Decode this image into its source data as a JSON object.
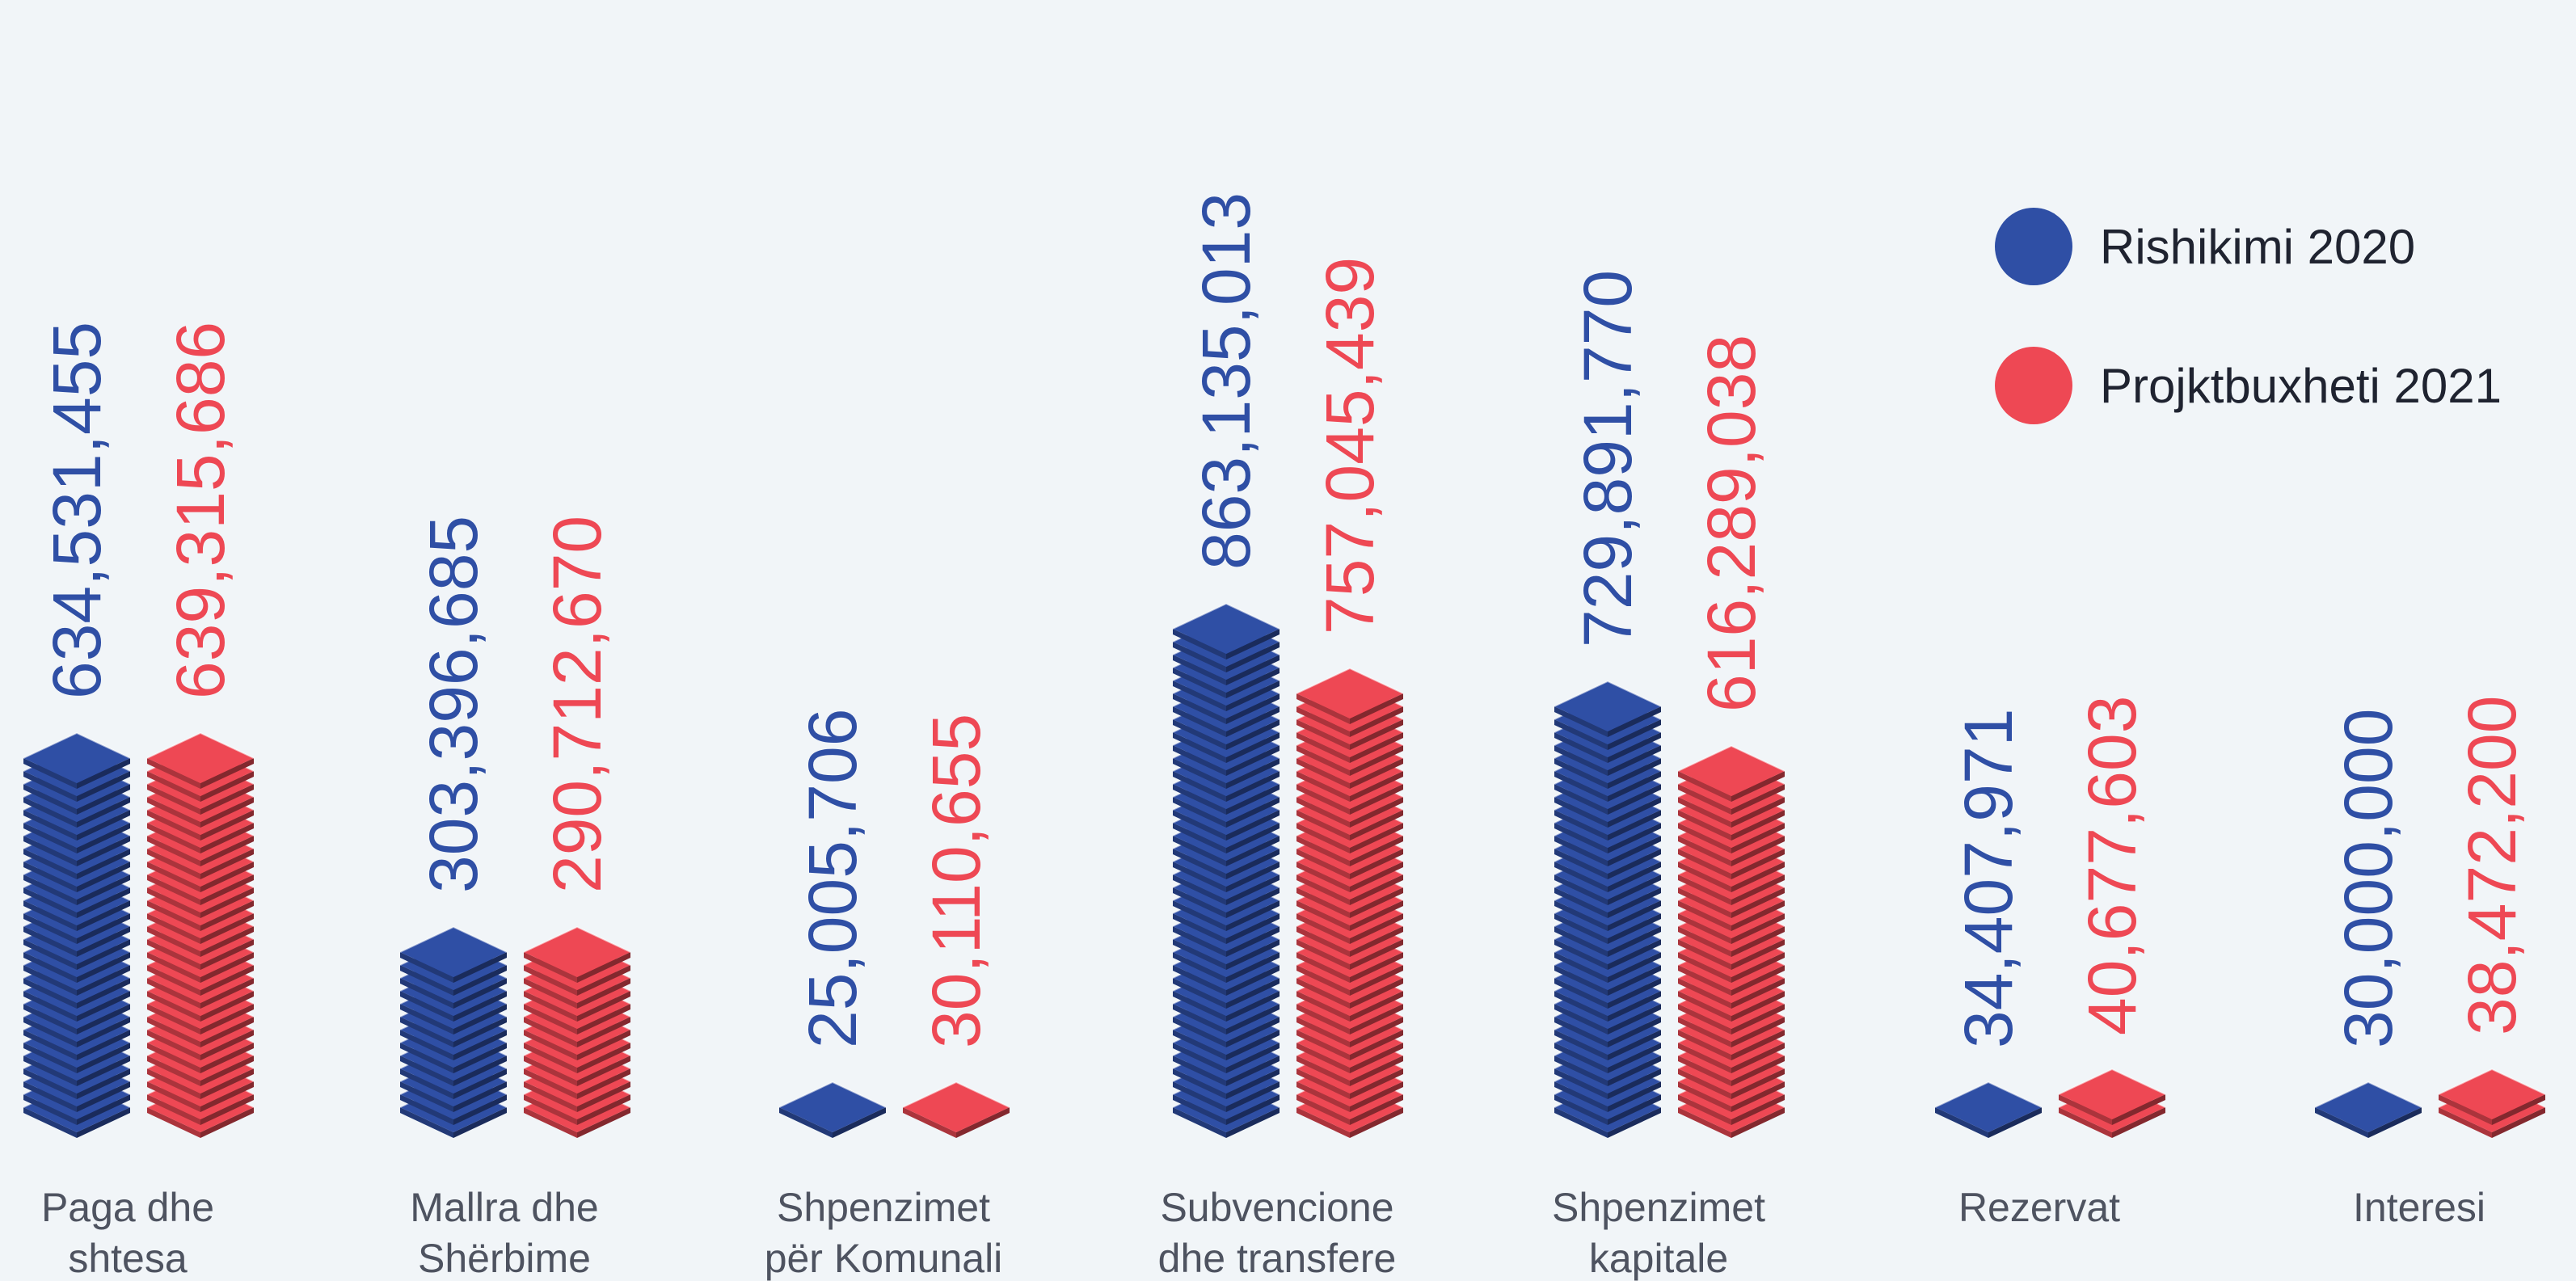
{
  "chart_data": {
    "type": "bar",
    "title": "",
    "xlabel": "",
    "ylabel": "",
    "categories": [
      [
        "Paga dhe",
        "shtesa"
      ],
      [
        "Mallra dhe",
        "Shërbime"
      ],
      [
        "Shpenzimet",
        "për Komunali"
      ],
      [
        "Subvencione",
        "dhe transfere"
      ],
      [
        "Shpenzimet",
        "kapitale"
      ],
      [
        "Rezervat"
      ],
      [
        "Interesi"
      ]
    ],
    "series": [
      {
        "name": "Rishikimi 2020",
        "color": "#2f4fa5",
        "values": [
          634531455,
          303396685,
          25005706,
          863135013,
          729891770,
          34407971,
          30000000
        ],
        "labels": [
          "634,531,455",
          "303,396,685",
          "25,005,706",
          "863,135,013",
          "729,891,770",
          "34,407,971",
          "30,000,000"
        ]
      },
      {
        "name": "Projktbuxheti 2021",
        "color": "#ee4854",
        "values": [
          639315686,
          290712670,
          30110655,
          757045439,
          616289038,
          40677603,
          38472200
        ],
        "labels": [
          "639,315,686",
          "290,712,670",
          "30,110,655",
          "757,045,439",
          "616,289,038",
          "40,677,603",
          "38,472,200"
        ]
      }
    ],
    "legend_position": "top-right",
    "grid": false
  }
}
